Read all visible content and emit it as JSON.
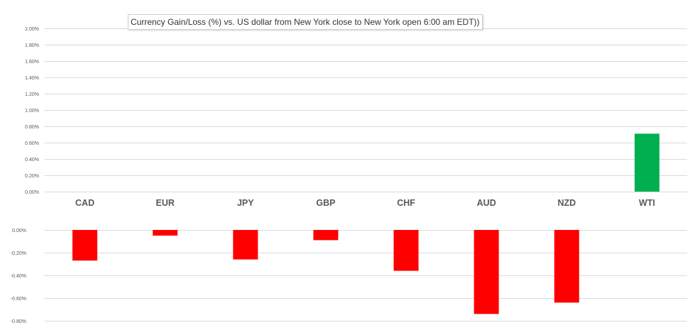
{
  "title": "Currency  Gain/Loss (%) vs. US dollar  from New York  close to  New York open 6:00 am EDT))",
  "colors": {
    "positive": "#00b050",
    "negative": "#ff0000",
    "grid": "#d9d9d9",
    "text": "#595959"
  },
  "chart_data": {
    "type": "bar",
    "categories": [
      "CAD",
      "EUR",
      "JPY",
      "GBP",
      "CHF",
      "AUD",
      "NZD",
      "WTI"
    ],
    "values": [
      -0.27,
      -0.05,
      -0.26,
      -0.09,
      -0.36,
      -0.74,
      -0.64,
      0.71
    ],
    "upper_axis": {
      "ticks": [
        0.0,
        0.2,
        0.4,
        0.6,
        0.8,
        1.0,
        1.2,
        1.4,
        1.6,
        1.8,
        2.0
      ],
      "tick_labels": [
        "0.00%",
        "0.20%",
        "0.40%",
        "0.60%",
        "0.80%",
        "1.00%",
        "1.20%",
        "1.40%",
        "1.60%",
        "1.80%",
        "2.00%"
      ],
      "ylim": [
        0,
        2.0
      ]
    },
    "lower_axis": {
      "ticks": [
        0.0,
        -0.2,
        -0.4,
        -0.6,
        -0.8
      ],
      "tick_labels": [
        "0.00%",
        "-0.20%",
        "-0.40%",
        "-0.60%",
        "-0.80%"
      ],
      "ylim": [
        -0.8,
        0
      ]
    },
    "grid": true,
    "legend": false
  }
}
